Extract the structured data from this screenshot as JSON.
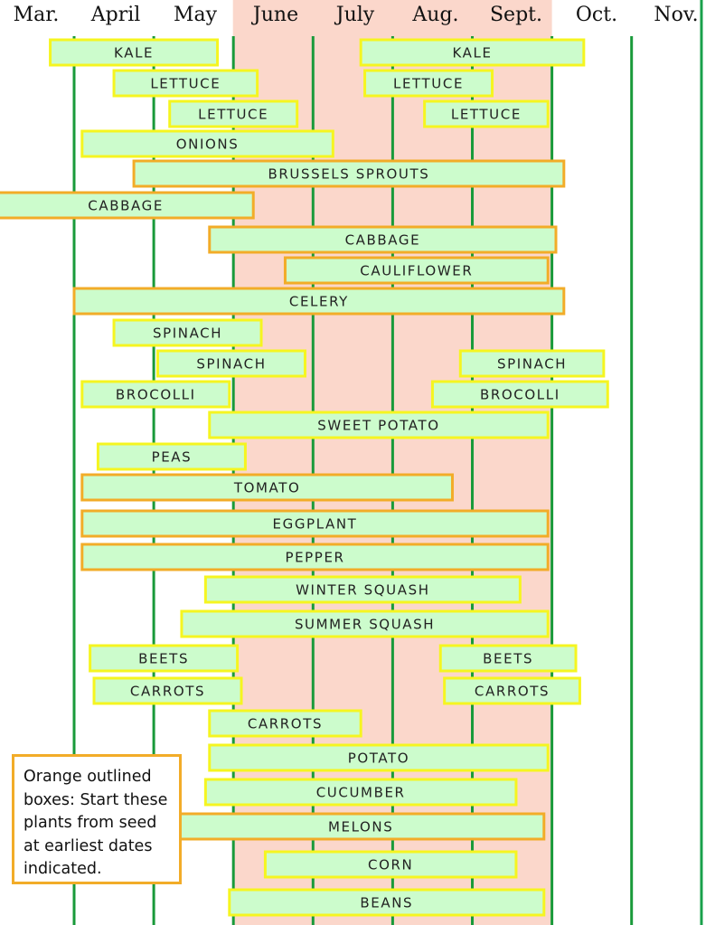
{
  "chart_data": {
    "type": "gantt",
    "categories": [
      "Mar.",
      "April",
      "May",
      "June",
      "July",
      "Aug.",
      "Sept.",
      "Oct.",
      "Nov."
    ],
    "highlight": {
      "from": "June",
      "to": "Sept.",
      "color": "#fbd7cb"
    },
    "colors": {
      "bar_fill": "#ccfccc",
      "outline_orange": "#f2ac28",
      "outline_yellow": "#f5f520",
      "gridline": "#199a3a",
      "frame": "#19a14b"
    },
    "bars": [
      {
        "label": "KALE",
        "start": 3.7,
        "end": 5.8,
        "outline": "yellow"
      },
      {
        "label": "KALE",
        "start": 7.6,
        "end": 10.4,
        "outline": "yellow"
      },
      {
        "label": "LETTUCE",
        "start": 4.5,
        "end": 6.3,
        "outline": "yellow"
      },
      {
        "label": "LETTUCE",
        "start": 7.65,
        "end": 9.25,
        "outline": "yellow"
      },
      {
        "label": "LETTUCE",
        "start": 5.2,
        "end": 6.8,
        "outline": "yellow"
      },
      {
        "label": "LETTUCE",
        "start": 8.4,
        "end": 9.95,
        "outline": "yellow"
      },
      {
        "label": "ONIONS",
        "start": 4.1,
        "end": 7.25,
        "outline": "yellow"
      },
      {
        "label": "BRUSSELS SPROUTS",
        "start": 4.75,
        "end": 10.15,
        "outline": "orange"
      },
      {
        "label": "CABBAGE",
        "start": 3.0,
        "end": 6.25,
        "outline": "orange"
      },
      {
        "label": "CABBAGE",
        "start": 5.7,
        "end": 10.05,
        "outline": "orange"
      },
      {
        "label": "CAULIFLOWER",
        "start": 6.65,
        "end": 9.95,
        "outline": "orange"
      },
      {
        "label": "CELERY",
        "start": 4.0,
        "end": 10.15,
        "outline": "orange"
      },
      {
        "label": "SPINACH",
        "start": 4.5,
        "end": 6.35,
        "outline": "yellow"
      },
      {
        "label": "SPINACH",
        "start": 5.05,
        "end": 6.9,
        "outline": "yellow"
      },
      {
        "label": "SPINACH",
        "start": 8.85,
        "end": 10.65,
        "outline": "yellow"
      },
      {
        "label": "BROCOLLI",
        "start": 4.1,
        "end": 5.95,
        "outline": "yellow"
      },
      {
        "label": "BROCOLLI",
        "start": 8.5,
        "end": 10.7,
        "outline": "yellow"
      },
      {
        "label": "SWEET POTATO",
        "start": 5.7,
        "end": 9.95,
        "outline": "yellow"
      },
      {
        "label": "PEAS",
        "start": 4.3,
        "end": 6.15,
        "outline": "yellow"
      },
      {
        "label": "TOMATO",
        "start": 4.1,
        "end": 8.75,
        "outline": "orange"
      },
      {
        "label": "EGGPLANT",
        "start": 4.1,
        "end": 9.95,
        "outline": "orange"
      },
      {
        "label": "PEPPER",
        "start": 4.1,
        "end": 9.95,
        "outline": "orange"
      },
      {
        "label": "WINTER SQUASH",
        "start": 5.65,
        "end": 9.6,
        "outline": "yellow"
      },
      {
        "label": "SUMMER SQUASH",
        "start": 5.35,
        "end": 9.95,
        "outline": "yellow"
      },
      {
        "label": "BEETS",
        "start": 4.2,
        "end": 6.05,
        "outline": "yellow"
      },
      {
        "label": "BEETS",
        "start": 8.6,
        "end": 10.3,
        "outline": "yellow"
      },
      {
        "label": "CARROTS",
        "start": 4.25,
        "end": 6.1,
        "outline": "yellow"
      },
      {
        "label": "CARROTS",
        "start": 8.65,
        "end": 10.35,
        "outline": "yellow"
      },
      {
        "label": "CARROTS",
        "start": 5.7,
        "end": 7.6,
        "outline": "yellow"
      },
      {
        "label": "POTATO",
        "start": 5.7,
        "end": 9.95,
        "outline": "yellow"
      },
      {
        "label": "CUCUMBER",
        "start": 5.65,
        "end": 9.55,
        "outline": "yellow"
      },
      {
        "label": "MELONS",
        "start": 5.3,
        "end": 9.9,
        "outline": "orange"
      },
      {
        "label": "CORN",
        "start": 6.4,
        "end": 9.55,
        "outline": "yellow"
      },
      {
        "label": "BEANS",
        "start": 5.95,
        "end": 9.9,
        "outline": "yellow"
      }
    ]
  },
  "legend": {
    "text": "Orange outlined boxes: Start these plants from seed at earliest dates indicated."
  }
}
